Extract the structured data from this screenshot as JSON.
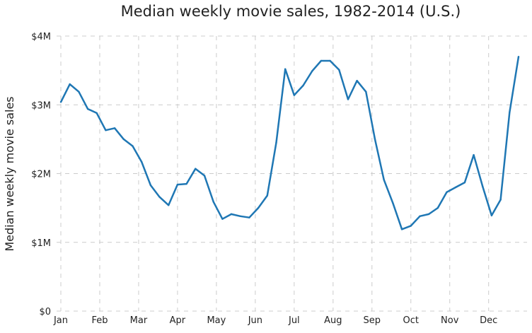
{
  "chart_data": {
    "type": "line",
    "title": "Median weekly movie sales, 1982-2014 (U.S.)",
    "xlabel": "",
    "ylabel": "Median weekly movie sales",
    "ylim": [
      0,
      4000000
    ],
    "yticks": [
      0,
      1000000,
      2000000,
      3000000,
      4000000
    ],
    "ytick_labels": [
      "$0",
      "$1M",
      "$2M",
      "$3M",
      "$4M"
    ],
    "xtick_labels": [
      "Jan",
      "Feb",
      "Mar",
      "Apr",
      "May",
      "Jun",
      "Jul",
      "Aug",
      "Sep",
      "Oct",
      "Nov",
      "Dec"
    ],
    "grid": true,
    "color": "#1f77b4",
    "x": [
      1,
      2,
      3,
      4,
      5,
      6,
      7,
      8,
      9,
      10,
      11,
      12,
      13,
      14,
      15,
      16,
      17,
      18,
      19,
      20,
      21,
      22,
      23,
      24,
      25,
      26,
      27,
      28,
      29,
      30,
      31,
      32,
      33,
      34,
      35,
      36,
      37,
      38,
      39,
      40,
      41,
      42,
      43,
      44,
      45,
      46,
      47,
      48,
      49,
      50,
      51,
      52
    ],
    "values": [
      3040000,
      3300000,
      3190000,
      2940000,
      2880000,
      2630000,
      2660000,
      2500000,
      2400000,
      2170000,
      1830000,
      1660000,
      1540000,
      1840000,
      1850000,
      2070000,
      1970000,
      1590000,
      1340000,
      1410000,
      1380000,
      1360000,
      1500000,
      1680000,
      2450000,
      3520000,
      3140000,
      3280000,
      3490000,
      3640000,
      3640000,
      3510000,
      3080000,
      3350000,
      3190000,
      2500000,
      1910000,
      1570000,
      1190000,
      1240000,
      1380000,
      1410000,
      1500000,
      1730000,
      1800000,
      1870000,
      2270000,
      1810000,
      1390000,
      1620000,
      2890000,
      3700000
    ]
  }
}
